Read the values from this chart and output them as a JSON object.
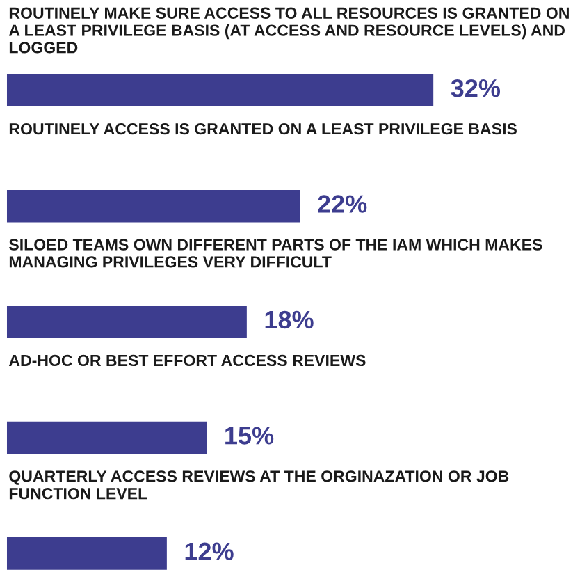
{
  "chart_data": {
    "type": "bar",
    "orientation": "horizontal",
    "categories": [
      "ROUTINELY MAKE SURE ACCESS TO ALL RESOURCES IS GRANTED ON A LEAST PRIVILEGE BASIS (AT ACCESS AND RESOURCE LEVELS) AND LOGGED",
      "ROUTINELY ACCESS IS GRANTED ON A LEAST PRIVILEGE BASIS",
      "SILOED TEAMS OWN DIFFERENT PARTS OF THE IAM WHICH MAKES MANAGING PRIVILEGES VERY DIFFICULT",
      "AD-HOC OR BEST EFFORT ACCESS REVIEWS",
      "QUARTERLY ACCESS REVIEWS AT THE ORGINAZATION OR JOB FUNCTION LEVEL"
    ],
    "values": [
      32,
      22,
      18,
      15,
      12
    ],
    "value_labels": [
      "32%",
      "22%",
      "18%",
      "15%",
      "12%"
    ],
    "color": "#3d3d8f"
  }
}
